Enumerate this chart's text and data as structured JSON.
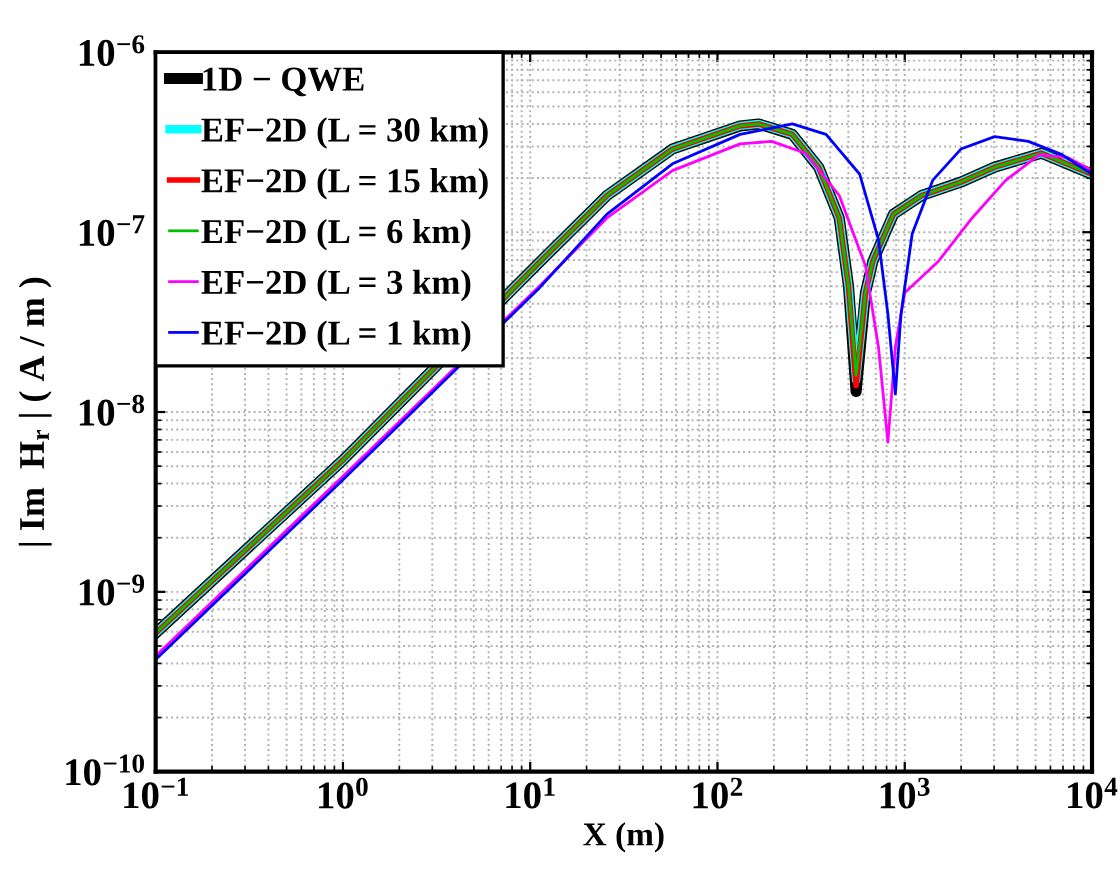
{
  "chart_data": {
    "type": "line",
    "xlabel": "X (m)",
    "ylabel": "| Im  H$_{r}$ | ( A / m )",
    "log": "xy",
    "grid": true,
    "legend": "top left",
    "line_style": "solid",
    "marker": "none",
    "xlim": [
      0.1,
      10000
    ],
    "ylim": [
      1e-10,
      1e-06
    ],
    "xticks": [
      {
        "value": 0.1,
        "label": "10$^{−1}$"
      },
      {
        "value": 1,
        "label": "10$^{0}$"
      },
      {
        "value": 10,
        "label": "10$^{1}$"
      },
      {
        "value": 100,
        "label": "10$^{2}$"
      },
      {
        "value": 1000,
        "label": "10$^{3}$"
      },
      {
        "value": 10000,
        "label": "10$^{4}$"
      }
    ],
    "yticks": [
      {
        "value": 1e-10,
        "label": "10$^{−10}$"
      },
      {
        "value": 1e-09,
        "label": "10$^{−9}$"
      },
      {
        "value": 1e-08,
        "label": "10$^{−8}$"
      },
      {
        "value": 1e-07,
        "label": "10$^{−7}$"
      },
      {
        "value": 1e-06,
        "label": "10$^{−6}$"
      }
    ],
    "series": [
      {
        "name": "1D − QWE",
        "color": "#000000",
        "x": [
          0.1,
          1,
          11.2,
          25.7,
          57.5,
          132,
          166,
          251,
          347,
          447,
          501,
          550,
          617,
          676,
          871,
          1230,
          1995,
          3020,
          5370,
          10000
        ],
        "values": [
          5.9e-10,
          5.4e-09,
          6.8e-08,
          1.6e-07,
          2.9e-07,
          3.9e-07,
          4e-07,
          3.5e-07,
          2.3e-07,
          1.2e-07,
          5e-08,
          1.3e-08,
          4.6e-08,
          6.9e-08,
          1.26e-07,
          1.6e-07,
          1.9e-07,
          2.3e-07,
          2.75e-07,
          2.1e-07
        ]
      },
      {
        "name": "EF−2D (L = 30 km)",
        "color": "#00ffff",
        "x": [
          0.1,
          1,
          11.2,
          25.7,
          57.5,
          132,
          166,
          251,
          347,
          447,
          501,
          550,
          617,
          676,
          871,
          1230,
          1995,
          3020,
          5370,
          10000
        ],
        "values": [
          5.9e-10,
          5.4e-09,
          6.8e-08,
          1.6e-07,
          2.9e-07,
          3.9e-07,
          4e-07,
          3.5e-07,
          2.3e-07,
          1.2e-07,
          5e-08,
          1.5e-08,
          4.6e-08,
          6.9e-08,
          1.26e-07,
          1.6e-07,
          1.9e-07,
          2.3e-07,
          2.75e-07,
          2.1e-07
        ]
      },
      {
        "name": "EF−2D (L = 15 km)",
        "color": "#ff0000",
        "x": [
          0.1,
          1,
          11.2,
          25.7,
          57.5,
          132,
          166,
          251,
          347,
          447,
          501,
          550,
          617,
          676,
          871,
          1230,
          1995,
          3020,
          5370,
          10000
        ],
        "values": [
          5.9e-10,
          5.4e-09,
          6.8e-08,
          1.6e-07,
          2.9e-07,
          3.9e-07,
          4e-07,
          3.5e-07,
          2.3e-07,
          1.2e-07,
          5e-08,
          1.4e-08,
          4.6e-08,
          6.9e-08,
          1.26e-07,
          1.6e-07,
          1.9e-07,
          2.3e-07,
          2.75e-07,
          2.1e-07
        ]
      },
      {
        "name": "EF−2D (L = 6 km)",
        "color": "#00c000",
        "x": [
          0.1,
          1,
          11.2,
          25.7,
          57.5,
          132,
          166,
          251,
          347,
          447,
          501,
          550,
          617,
          676,
          871,
          1230,
          1995,
          3020,
          5370,
          10000
        ],
        "values": [
          5.9e-10,
          5.4e-09,
          6.8e-08,
          1.6e-07,
          2.9e-07,
          3.9e-07,
          4e-07,
          3.5e-07,
          2.3e-07,
          1.2e-07,
          5e-08,
          1.6e-08,
          4.6e-08,
          6.9e-08,
          1.26e-07,
          1.6e-07,
          1.9e-07,
          2.3e-07,
          2.75e-07,
          2.1e-07
        ]
      },
      {
        "name": "EF−2D (L = 3 km)",
        "color": "#ff00ff",
        "x": [
          0.1,
          1,
          11.2,
          25.7,
          57.5,
          132,
          195,
          295,
          447,
          617,
          724,
          813,
          891,
          1000,
          1514,
          2291,
          3467,
          5248,
          7413,
          10000
        ],
        "values": [
          4.4e-10,
          4.4e-09,
          5e-08,
          1.2e-07,
          2.2e-07,
          3.1e-07,
          3.2e-07,
          2.75e-07,
          1.6e-07,
          6.5e-08,
          2.3e-08,
          6.8e-09,
          2.3e-08,
          4.6e-08,
          6.9e-08,
          1.2e-07,
          1.95e-07,
          2.7e-07,
          2.6e-07,
          2.2e-07
        ]
      },
      {
        "name": "EF−2D (L = 1 km)",
        "color": "#0000ff",
        "x": [
          0.1,
          1,
          11.2,
          25.7,
          57.5,
          132,
          251,
          380,
          575,
          724,
          813,
          891,
          955,
          1096,
          1413,
          1995,
          3020,
          4571,
          6918,
          10000
        ],
        "values": [
          4.2e-10,
          4.2e-09,
          4.9e-08,
          1.26e-07,
          2.4e-07,
          3.5e-07,
          4e-07,
          3.5e-07,
          2.1e-07,
          9.1e-08,
          3.5e-08,
          1.26e-08,
          3.5e-08,
          9.8e-08,
          1.95e-07,
          2.9e-07,
          3.4e-07,
          3.2e-07,
          2.7e-07,
          2.1e-07
        ]
      }
    ]
  }
}
